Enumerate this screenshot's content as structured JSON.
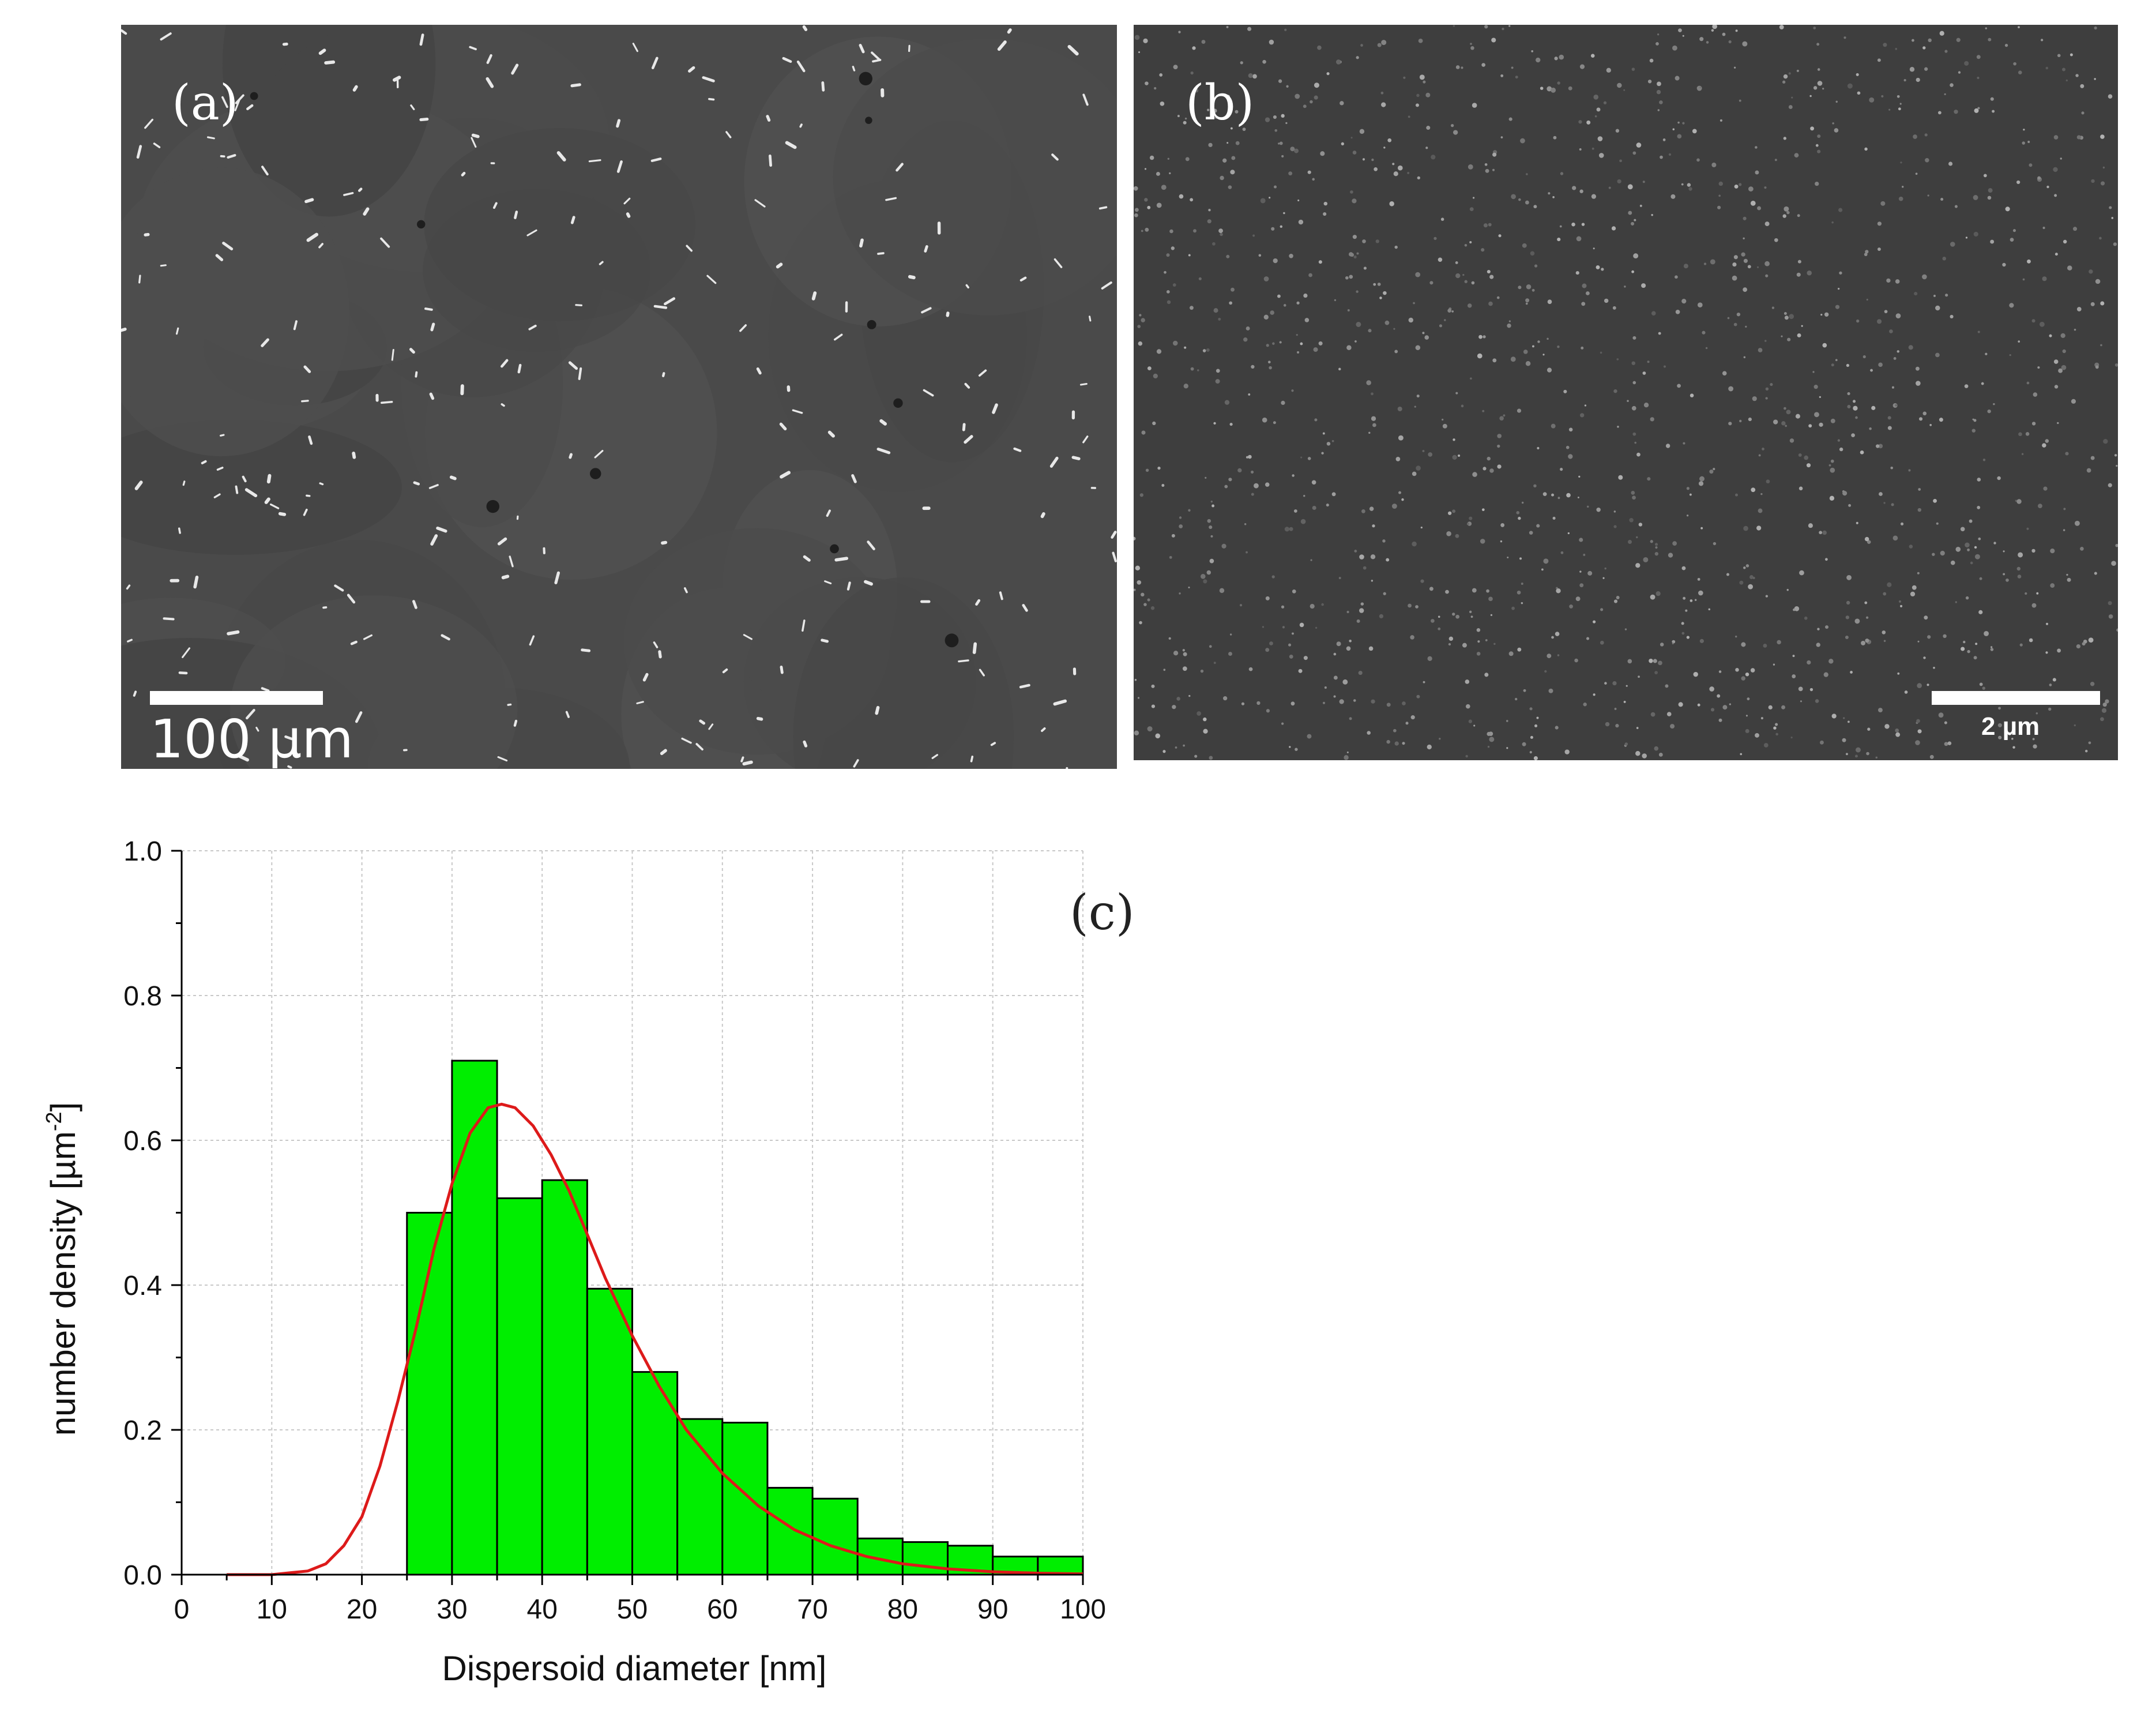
{
  "panel_a": {
    "label": "(a)",
    "scale_bar": "100 µm",
    "background": "#4a4a4a"
  },
  "panel_b": {
    "label": "(b)",
    "scale_bar": "2 µm",
    "background": "#3e3e3e"
  },
  "chart_data": {
    "type": "bar",
    "panel_label": "(c)",
    "xlabel": "Dispersoid diameter [nm]",
    "ylabel_main": "number density [µm",
    "ylabel_sup": "-2",
    "ylabel_tail": "]",
    "xlim": [
      0,
      100
    ],
    "ylim": [
      0,
      1.0
    ],
    "x_ticks": [
      "0",
      "10",
      "20",
      "30",
      "40",
      "50",
      "60",
      "70",
      "80",
      "90",
      "100"
    ],
    "y_ticks": [
      "0.0",
      "0.2",
      "0.4",
      "0.6",
      "0.8",
      "1.0"
    ],
    "grid": true,
    "bin_width": 5,
    "bins": [
      {
        "x0": 25,
        "x1": 30,
        "value": 0.5
      },
      {
        "x0": 30,
        "x1": 35,
        "value": 0.71
      },
      {
        "x0": 35,
        "x1": 40,
        "value": 0.52
      },
      {
        "x0": 40,
        "x1": 45,
        "value": 0.545
      },
      {
        "x0": 45,
        "x1": 50,
        "value": 0.395
      },
      {
        "x0": 50,
        "x1": 55,
        "value": 0.28
      },
      {
        "x0": 55,
        "x1": 60,
        "value": 0.215
      },
      {
        "x0": 60,
        "x1": 65,
        "value": 0.21
      },
      {
        "x0": 65,
        "x1": 70,
        "value": 0.12
      },
      {
        "x0": 70,
        "x1": 75,
        "value": 0.105
      },
      {
        "x0": 75,
        "x1": 80,
        "value": 0.05
      },
      {
        "x0": 80,
        "x1": 85,
        "value": 0.045
      },
      {
        "x0": 85,
        "x1": 90,
        "value": 0.04
      },
      {
        "x0": 90,
        "x1": 95,
        "value": 0.025
      },
      {
        "x0": 95,
        "x1": 100,
        "value": 0.025
      }
    ],
    "fit_curve": {
      "type": "lognormal",
      "color": "#dd1a1a",
      "points": [
        [
          5,
          0.0
        ],
        [
          10,
          0.0
        ],
        [
          14,
          0.005
        ],
        [
          16,
          0.015
        ],
        [
          18,
          0.04
        ],
        [
          20,
          0.08
        ],
        [
          22,
          0.15
        ],
        [
          24,
          0.24
        ],
        [
          26,
          0.34
        ],
        [
          28,
          0.45
        ],
        [
          30,
          0.54
        ],
        [
          32,
          0.61
        ],
        [
          34,
          0.645
        ],
        [
          35.5,
          0.65
        ],
        [
          37,
          0.645
        ],
        [
          39,
          0.62
        ],
        [
          41,
          0.58
        ],
        [
          43,
          0.53
        ],
        [
          45,
          0.47
        ],
        [
          47,
          0.41
        ],
        [
          50,
          0.33
        ],
        [
          53,
          0.26
        ],
        [
          56,
          0.2
        ],
        [
          60,
          0.14
        ],
        [
          64,
          0.095
        ],
        [
          68,
          0.062
        ],
        [
          72,
          0.04
        ],
        [
          76,
          0.025
        ],
        [
          80,
          0.015
        ],
        [
          85,
          0.008
        ],
        [
          90,
          0.004
        ],
        [
          95,
          0.002
        ],
        [
          100,
          0.001
        ]
      ]
    },
    "bar_color": "#00ee00"
  }
}
